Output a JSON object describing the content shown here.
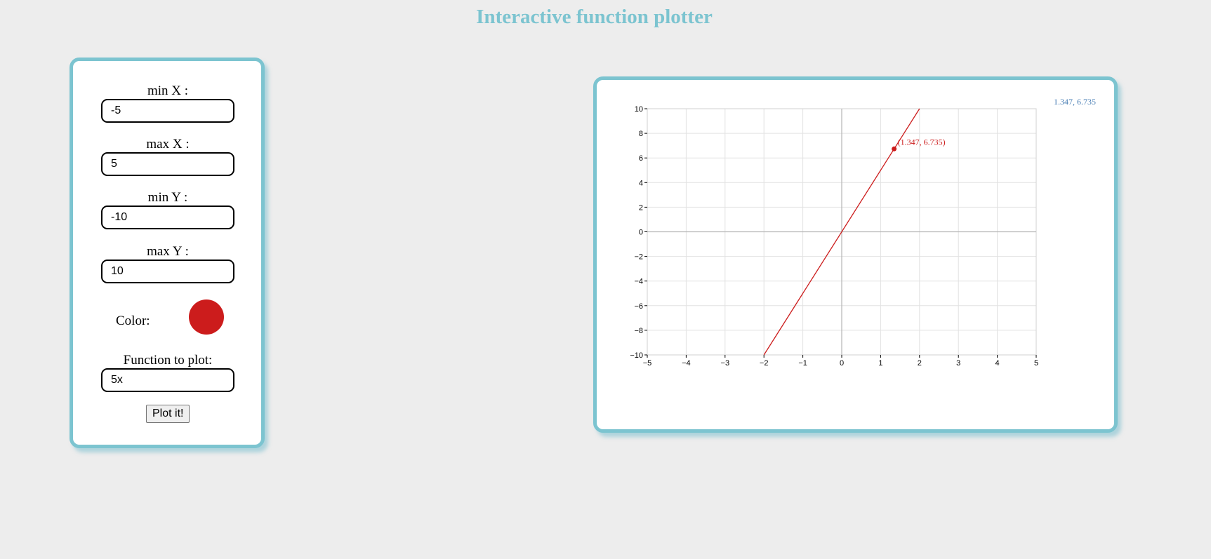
{
  "page": {
    "title": "Interactive function plotter"
  },
  "controls": {
    "min_x": {
      "label": "min X :",
      "value": "-5"
    },
    "max_x": {
      "label": "max X :",
      "value": "5"
    },
    "min_y": {
      "label": "min Y :",
      "value": "-10"
    },
    "max_y": {
      "label": "max Y :",
      "value": "10"
    },
    "color": {
      "label": "Color:",
      "value": "#cc1c1c"
    },
    "function": {
      "label": "Function to plot:",
      "value": "5x"
    },
    "plot_button": "Plot it!"
  },
  "plot": {
    "coordinate_readout": "1.347, 6.735",
    "tooltip": "(1.347, 6.735)"
  },
  "chart_data": {
    "type": "line",
    "function": "5x",
    "series": [
      {
        "color": "#cc1c1c",
        "x": [
          -2,
          2
        ],
        "y": [
          -10,
          10
        ]
      }
    ],
    "highlight_point": {
      "x": 1.347,
      "y": 6.735
    },
    "xlim": [
      -5,
      5
    ],
    "ylim": [
      -10,
      10
    ],
    "x_ticks": [
      -5,
      -4,
      -3,
      -2,
      -1,
      0,
      1,
      2,
      3,
      4,
      5
    ],
    "y_ticks": [
      -10,
      -8,
      -6,
      -4,
      -2,
      0,
      2,
      4,
      6,
      8,
      10
    ],
    "grid": true,
    "title": "",
    "xlabel": "",
    "ylabel": ""
  }
}
